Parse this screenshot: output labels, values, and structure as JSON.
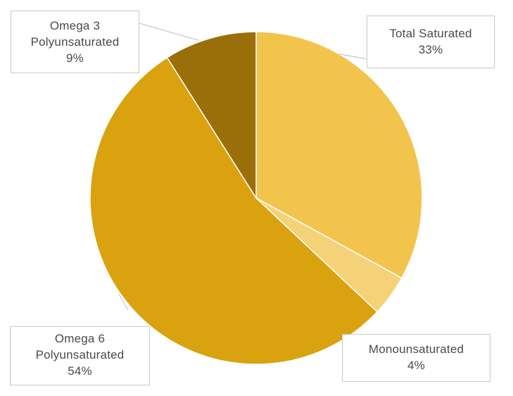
{
  "chart_data": {
    "type": "pie",
    "title": "",
    "slices": [
      {
        "label": "Total Saturated",
        "value": 33,
        "display": "33%",
        "color": "#F2C44C"
      },
      {
        "label": "Monounsaturated",
        "value": 4,
        "display": "4%",
        "color": "#F5D277"
      },
      {
        "label": "Omega 6 Polyunsaturated",
        "label_lines": [
          "Omega 6",
          "Polyunsaturated"
        ],
        "value": 54,
        "display": "54%",
        "color": "#D9A20E"
      },
      {
        "label": "Omega 3 Polyunsaturated",
        "label_lines": [
          "Omega 3",
          "Polyunsaturated"
        ],
        "value": 9,
        "display": "9%",
        "color": "#9A6F09"
      }
    ],
    "start_angle_deg": 0,
    "direction": "clockwise",
    "legend": "none",
    "label_style": "callouts"
  }
}
